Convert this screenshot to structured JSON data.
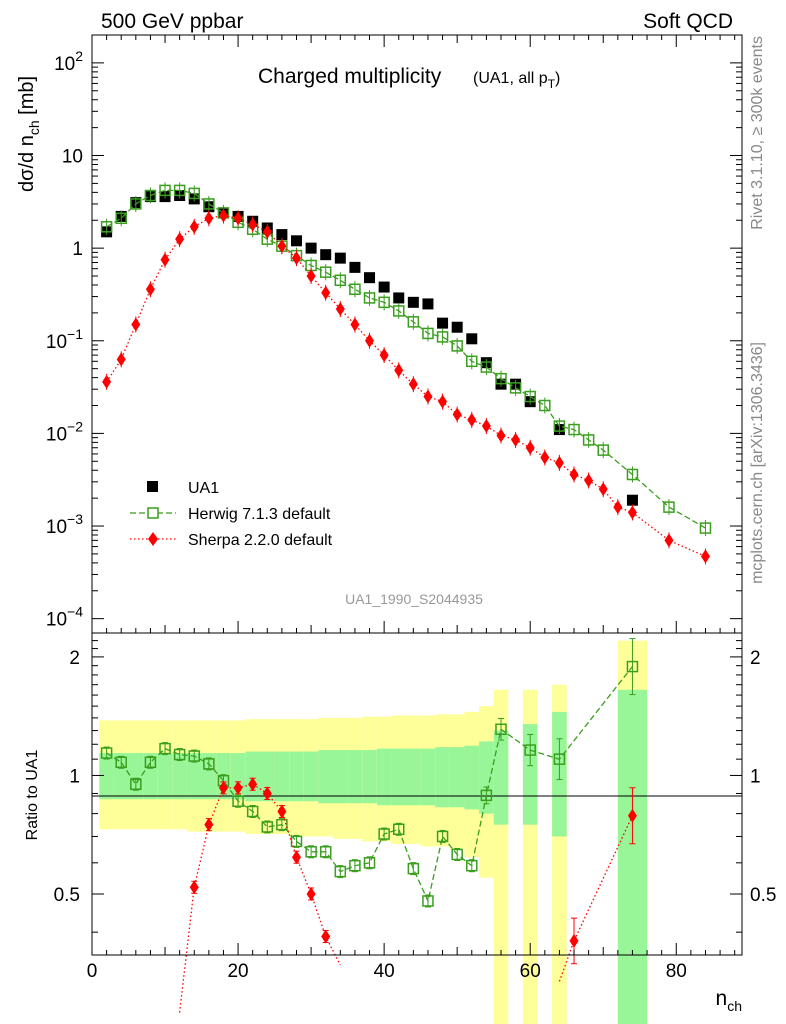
{
  "header": {
    "left": "500 GeV ppbar",
    "right": "Soft QCD"
  },
  "side_labels": {
    "rivet": "Rivet 3.1.10, ≥ 300k events",
    "mcplots": "mcplots.cern.ch [arXiv:1306.3436]"
  },
  "chart_data": {
    "type": "scatter",
    "title": "Charged multiplicity",
    "title_note": "(UA1, all p",
    "title_note_sub": "T",
    "title_note_end": ")",
    "analysis_id": "UA1_1990_S2044935",
    "ylabel_top": {
      "main": "dσ/d n",
      "sub": "ch",
      "unit": " [mb]"
    },
    "ylabel_ratio": "Ratio to UA1",
    "xlabel": {
      "main": "n",
      "sub": "ch"
    },
    "xlim": [
      0,
      89
    ],
    "ylim_top": [
      7e-05,
      200
    ],
    "yscale_top": "log",
    "ylim_ratio": [
      0.35,
      2.3
    ],
    "xticks": [
      0,
      20,
      40,
      60,
      80
    ],
    "yticks_top": [
      {
        "v": 0.0001,
        "mant": "10",
        "exp": "−4"
      },
      {
        "v": 0.001,
        "mant": "10",
        "exp": "−3"
      },
      {
        "v": 0.01,
        "mant": "10",
        "exp": "−2"
      },
      {
        "v": 0.1,
        "mant": "10",
        "exp": "−1"
      },
      {
        "v": 1,
        "mant": "1",
        "exp": ""
      },
      {
        "v": 10,
        "mant": "10",
        "exp": ""
      },
      {
        "v": 100,
        "mant": "10",
        "exp": "2"
      }
    ],
    "yticks_ratio": [
      {
        "v": 0.5,
        "label": "0.5"
      },
      {
        "v": 1,
        "label": "1"
      },
      {
        "v": 2,
        "label": "2"
      }
    ],
    "legend_position": "bottom-left",
    "series": [
      {
        "name": "UA1",
        "color": "#000000",
        "marker": "square-filled",
        "x": [
          2,
          4,
          6,
          8,
          10,
          12,
          14,
          16,
          18,
          20,
          22,
          24,
          26,
          28,
          30,
          32,
          34,
          36,
          38,
          40,
          42,
          44,
          46,
          48,
          50,
          52,
          54,
          56,
          58,
          60,
          64,
          74
        ],
        "y": [
          1.5,
          2.2,
          3.1,
          3.6,
          3.6,
          3.7,
          3.4,
          2.8,
          2.4,
          2.2,
          1.95,
          1.65,
          1.4,
          1.2,
          1.0,
          0.85,
          0.78,
          0.62,
          0.48,
          0.38,
          0.29,
          0.26,
          0.25,
          0.155,
          0.14,
          0.105,
          0.058,
          0.034,
          0.034,
          0.022,
          0.011,
          0.0019
        ]
      },
      {
        "name": "Herwig 7.1.3 default",
        "color": "#3a9e1e",
        "marker": "square-open",
        "line": "dashed",
        "x": [
          2,
          4,
          6,
          8,
          10,
          12,
          14,
          16,
          18,
          20,
          22,
          24,
          26,
          28,
          30,
          32,
          34,
          36,
          38,
          40,
          42,
          44,
          46,
          48,
          50,
          52,
          54,
          56,
          58,
          60,
          62,
          64,
          66,
          68,
          70,
          74,
          79,
          84
        ],
        "y": [
          1.7,
          2.1,
          3.0,
          3.7,
          4.2,
          4.2,
          3.9,
          3.0,
          2.4,
          1.9,
          1.6,
          1.25,
          1.05,
          0.83,
          0.65,
          0.55,
          0.45,
          0.36,
          0.29,
          0.26,
          0.21,
          0.16,
          0.12,
          0.11,
          0.088,
          0.06,
          0.052,
          0.039,
          0.031,
          0.025,
          0.02,
          0.012,
          0.011,
          0.0085,
          0.0066,
          0.0036,
          0.0016,
          0.00095
        ]
      },
      {
        "name": "Sherpa 2.2.0 default",
        "color": "#ff0000",
        "marker": "diamond-filled",
        "line": "dotted",
        "x": [
          2,
          4,
          6,
          8,
          10,
          12,
          14,
          16,
          18,
          20,
          22,
          24,
          26,
          28,
          30,
          32,
          34,
          36,
          38,
          40,
          42,
          44,
          46,
          48,
          50,
          52,
          54,
          56,
          58,
          60,
          62,
          64,
          66,
          68,
          70,
          72,
          74,
          79,
          84
        ],
        "y": [
          0.036,
          0.063,
          0.15,
          0.36,
          0.75,
          1.25,
          1.7,
          2.1,
          2.25,
          2.1,
          1.8,
          1.5,
          1.05,
          0.78,
          0.5,
          0.33,
          0.22,
          0.15,
          0.1,
          0.07,
          0.048,
          0.034,
          0.025,
          0.022,
          0.016,
          0.014,
          0.012,
          0.0095,
          0.0085,
          0.007,
          0.0055,
          0.0048,
          0.0036,
          0.0031,
          0.0025,
          0.0016,
          0.0014,
          0.0007,
          0.00047
        ]
      }
    ],
    "ratio_series": [
      {
        "name": "Herwig 7.1.3 default",
        "x": [
          2,
          4,
          6,
          8,
          10,
          12,
          14,
          16,
          18,
          20,
          22,
          24,
          26,
          28,
          30,
          32,
          34,
          36,
          38,
          40,
          42,
          44,
          46,
          48,
          50,
          52,
          54,
          56,
          60,
          64,
          74
        ],
        "y": [
          1.14,
          1.08,
          0.95,
          1.08,
          1.17,
          1.13,
          1.12,
          1.07,
          0.97,
          0.86,
          0.81,
          0.74,
          0.75,
          0.68,
          0.64,
          0.64,
          0.57,
          0.59,
          0.6,
          0.71,
          0.73,
          0.58,
          0.48,
          0.7,
          0.63,
          0.59,
          0.89,
          1.31,
          1.16,
          1.1,
          1.89
        ]
      },
      {
        "name": "Sherpa 2.2.0 default",
        "x": [
          12,
          14,
          16,
          18,
          20,
          22,
          24,
          26,
          28,
          30,
          32,
          34,
          64,
          66,
          74
        ],
        "y": [
          0.25,
          0.52,
          0.75,
          0.93,
          0.93,
          0.95,
          0.9,
          0.81,
          0.62,
          0.5,
          0.39,
          0.33,
          0.3,
          0.38,
          0.79
        ]
      }
    ],
    "uncertainty_band": {
      "x_edges": [
        1,
        3,
        5,
        7,
        9,
        11,
        13,
        15,
        17,
        19,
        21,
        23,
        25,
        27,
        29,
        31,
        33,
        35,
        37,
        39,
        41,
        43,
        45,
        47,
        49,
        51,
        53,
        55,
        57
      ],
      "stat_lo": [
        0.87,
        0.87,
        0.87,
        0.87,
        0.87,
        0.87,
        0.87,
        0.87,
        0.87,
        0.87,
        0.86,
        0.86,
        0.86,
        0.86,
        0.86,
        0.85,
        0.85,
        0.85,
        0.85,
        0.84,
        0.84,
        0.84,
        0.84,
        0.83,
        0.83,
        0.82,
        0.8,
        0.75
      ],
      "stat_hi": [
        1.14,
        1.14,
        1.14,
        1.14,
        1.14,
        1.14,
        1.14,
        1.14,
        1.14,
        1.14,
        1.15,
        1.15,
        1.15,
        1.15,
        1.15,
        1.16,
        1.16,
        1.16,
        1.16,
        1.17,
        1.17,
        1.17,
        1.17,
        1.18,
        1.18,
        1.19,
        1.22,
        1.3
      ],
      "tot_lo": [
        0.73,
        0.73,
        0.73,
        0.73,
        0.73,
        0.73,
        0.72,
        0.72,
        0.72,
        0.72,
        0.71,
        0.71,
        0.71,
        0.7,
        0.7,
        0.7,
        0.69,
        0.69,
        0.68,
        0.68,
        0.67,
        0.67,
        0.66,
        0.66,
        0.65,
        0.62,
        0.55,
        0.2
      ],
      "tot_hi": [
        1.38,
        1.38,
        1.38,
        1.38,
        1.38,
        1.38,
        1.38,
        1.38,
        1.38,
        1.38,
        1.39,
        1.39,
        1.39,
        1.39,
        1.39,
        1.4,
        1.4,
        1.4,
        1.41,
        1.41,
        1.42,
        1.42,
        1.42,
        1.43,
        1.43,
        1.45,
        1.5,
        1.65
      ],
      "extra_bins": [
        {
          "x0": 59,
          "x1": 61,
          "stat_lo": 0.75,
          "stat_hi": 1.35,
          "tot_lo": 0.2,
          "tot_hi": 1.65
        },
        {
          "x0": 63,
          "x1": 65,
          "stat_lo": 0.7,
          "stat_hi": 1.45,
          "tot_lo": 0.2,
          "tot_hi": 1.7
        },
        {
          "x0": 72,
          "x1": 76,
          "stat_lo": 0.2,
          "stat_hi": 1.65,
          "tot_lo": 0.2,
          "tot_hi": 2.2
        }
      ]
    },
    "colors": {
      "stat_band": "#98f598",
      "total_band": "#ffff99",
      "grey_text": "#888888"
    }
  }
}
